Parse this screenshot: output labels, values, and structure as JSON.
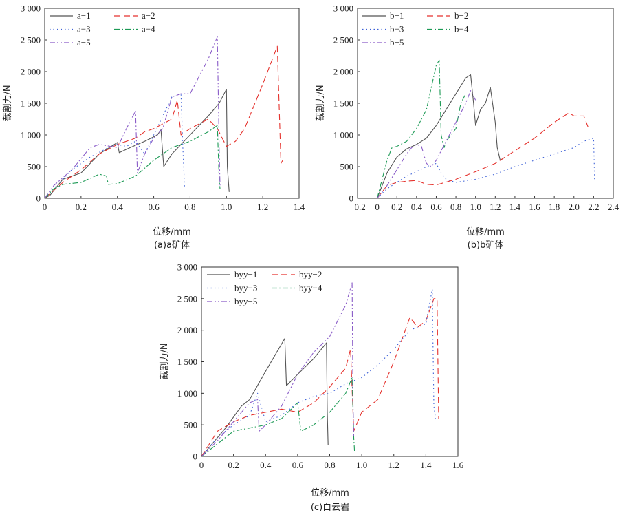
{
  "figure_title": "",
  "colors": {
    "s1": "#555555",
    "s2": "#e5322d",
    "s3": "#3b5fd6",
    "s4": "#1c9a55",
    "s5": "#8a5cc8"
  },
  "chart_data": [
    {
      "type": "line",
      "caption": "(a)a矿体",
      "xlabel": "位移/mm",
      "ylabel": "截割力/N",
      "xlim": [
        0,
        1.4
      ],
      "ylim": [
        0,
        3000
      ],
      "xticks": [
        0,
        0.2,
        0.4,
        0.6,
        0.8,
        1.0,
        1.2,
        1.4
      ],
      "xticklabels": [
        "0",
        "0.2",
        "0.4",
        "0.6",
        "0.8",
        "1.0",
        "1.2",
        "1.4"
      ],
      "yticks": [
        0,
        500,
        1000,
        1500,
        2000,
        2500,
        3000
      ],
      "yticklabels": [
        "0",
        "500",
        "1 000",
        "1 500",
        "2 000",
        "2 500",
        "3 000"
      ],
      "legend_position": "top-left",
      "series": [
        {
          "name": "a−1",
          "style": "s1",
          "x": [
            0,
            0.03,
            0.1,
            0.2,
            0.3,
            0.4,
            0.41,
            0.47,
            0.55,
            0.62,
            0.64,
            0.655,
            0.7,
            0.8,
            0.9,
            0.96,
            1.0,
            1.005,
            1.015
          ],
          "y": [
            0,
            50,
            300,
            400,
            700,
            880,
            720,
            800,
            900,
            1000,
            1080,
            500,
            700,
            1000,
            1300,
            1500,
            1720,
            500,
            100
          ]
        },
        {
          "name": "a−2",
          "style": "s2",
          "x": [
            0,
            0.1,
            0.2,
            0.3,
            0.4,
            0.5,
            0.55,
            0.6,
            0.7,
            0.73,
            0.75,
            0.8,
            0.9,
            0.95,
            1.0,
            1.05,
            1.1,
            1.2,
            1.28,
            1.3,
            1.31
          ],
          "y": [
            0,
            250,
            450,
            700,
            850,
            950,
            1050,
            1100,
            1250,
            1550,
            1000,
            1100,
            1250,
            1100,
            820,
            900,
            1100,
            1800,
            2400,
            550,
            600
          ]
        },
        {
          "name": "a−3",
          "style": "s3",
          "x": [
            0,
            0.05,
            0.15,
            0.25,
            0.35,
            0.4,
            0.45,
            0.5,
            0.55,
            0.6,
            0.7,
            0.75,
            0.76,
            0.77
          ],
          "y": [
            0,
            150,
            450,
            650,
            800,
            850,
            820,
            900,
            700,
            1000,
            1600,
            1650,
            800,
            150
          ]
        },
        {
          "name": "a−4",
          "style": "s4",
          "x": [
            0,
            0.05,
            0.1,
            0.2,
            0.3,
            0.34,
            0.35,
            0.4,
            0.5,
            0.6,
            0.7,
            0.8,
            0.9,
            0.95,
            0.96,
            0.965
          ],
          "y": [
            0,
            150,
            220,
            250,
            380,
            350,
            220,
            230,
            350,
            600,
            800,
            900,
            1050,
            1150,
            300,
            150
          ]
        },
        {
          "name": "a−5",
          "style": "s5",
          "x": [
            0,
            0.05,
            0.15,
            0.25,
            0.3,
            0.4,
            0.45,
            0.5,
            0.51,
            0.55,
            0.6,
            0.65,
            0.7,
            0.75,
            0.8,
            0.9,
            0.95,
            0.96,
            0.965
          ],
          "y": [
            0,
            200,
            450,
            800,
            850,
            800,
            1100,
            1380,
            400,
            700,
            950,
            1100,
            1600,
            1650,
            1650,
            2200,
            2550,
            800,
            200
          ]
        }
      ]
    },
    {
      "type": "line",
      "caption": "(b)b矿体",
      "xlabel": "位移/mm",
      "ylabel": "截割力/N",
      "xlim": [
        -0.2,
        2.4
      ],
      "ylim": [
        0,
        3000
      ],
      "xticks": [
        -0.2,
        0,
        0.2,
        0.4,
        0.6,
        0.8,
        1.0,
        1.2,
        1.4,
        1.6,
        1.8,
        2.0,
        2.2,
        2.4
      ],
      "xticklabels": [
        "−0.2",
        "0",
        "0.2",
        "0.4",
        "0.6",
        "0.8",
        "1.0",
        "1.2",
        "1.4",
        "1.6",
        "1.8",
        "2.0",
        "2.2",
        "2.4"
      ],
      "yticks": [
        0,
        500,
        1000,
        1500,
        2000,
        2500,
        3000
      ],
      "yticklabels": [
        "0",
        "500",
        "1 000",
        "1 500",
        "2 000",
        "2 500",
        "3 000"
      ],
      "legend_position": "top-left",
      "series": [
        {
          "name": "b−1",
          "style": "s1",
          "x": [
            0,
            0.05,
            0.1,
            0.2,
            0.3,
            0.4,
            0.5,
            0.6,
            0.7,
            0.8,
            0.9,
            0.95,
            0.98,
            1.0,
            1.05,
            1.1,
            1.15,
            1.2,
            1.22,
            1.25,
            1.3
          ],
          "y": [
            0,
            200,
            400,
            650,
            780,
            850,
            950,
            1150,
            1400,
            1650,
            1900,
            1950,
            1500,
            1150,
            1400,
            1500,
            1750,
            1200,
            800,
            600,
            650
          ]
        },
        {
          "name": "b−2",
          "style": "s2",
          "x": [
            0,
            0.1,
            0.2,
            0.3,
            0.4,
            0.5,
            0.6,
            0.8,
            1.0,
            1.2,
            1.4,
            1.6,
            1.8,
            1.95,
            2.0,
            2.1,
            2.15
          ],
          "y": [
            0,
            200,
            250,
            270,
            280,
            220,
            210,
            300,
            420,
            550,
            750,
            950,
            1200,
            1350,
            1300,
            1300,
            1100
          ]
        },
        {
          "name": "b−3",
          "style": "s3",
          "x": [
            0,
            0.1,
            0.2,
            0.3,
            0.4,
            0.5,
            0.6,
            0.65,
            0.7,
            0.8,
            1.0,
            1.2,
            1.4,
            1.6,
            1.8,
            2.0,
            2.1,
            2.2,
            2.21
          ],
          "y": [
            0,
            150,
            250,
            350,
            420,
            500,
            550,
            400,
            300,
            250,
            300,
            380,
            500,
            600,
            700,
            800,
            900,
            950,
            300
          ]
        },
        {
          "name": "b−4",
          "style": "s4",
          "x": [
            0,
            0.05,
            0.1,
            0.15,
            0.2,
            0.3,
            0.4,
            0.5,
            0.55,
            0.6,
            0.63,
            0.65,
            0.68,
            0.7,
            0.8,
            0.85,
            0.9
          ],
          "y": [
            0,
            300,
            600,
            800,
            820,
            900,
            1100,
            1400,
            1750,
            2100,
            2180,
            1000,
            800,
            900,
            1100,
            1500,
            1650
          ]
        },
        {
          "name": "b−5",
          "style": "s5",
          "x": [
            0,
            0.1,
            0.2,
            0.3,
            0.35,
            0.4,
            0.45,
            0.5,
            0.55,
            0.6,
            0.7,
            0.8,
            0.9,
            0.95,
            1.0
          ],
          "y": [
            0,
            200,
            450,
            700,
            800,
            850,
            820,
            550,
            500,
            600,
            900,
            1200,
            1500,
            1700,
            1550
          ]
        }
      ]
    },
    {
      "type": "line",
      "caption": "(c)白云岩",
      "xlabel": "位移/mm",
      "ylabel": "截割力/N",
      "xlim": [
        0,
        1.6
      ],
      "ylim": [
        0,
        3000
      ],
      "xticks": [
        0,
        0.2,
        0.4,
        0.6,
        0.8,
        1.0,
        1.2,
        1.4,
        1.6
      ],
      "xticklabels": [
        "0",
        "0.2",
        "0.4",
        "0.6",
        "0.8",
        "1.0",
        "1.2",
        "1.4",
        "1.6"
      ],
      "yticks": [
        0,
        500,
        1000,
        1500,
        2000,
        2500,
        3000
      ],
      "yticklabels": [
        "0",
        "500",
        "1 000",
        "1 500",
        "2 000",
        "2 500",
        "3 000"
      ],
      "legend_position": "top-left",
      "series": [
        {
          "name": "byy−1",
          "style": "s1",
          "x": [
            0,
            0.05,
            0.15,
            0.25,
            0.3,
            0.4,
            0.52,
            0.53,
            0.6,
            0.7,
            0.78,
            0.785,
            0.79
          ],
          "y": [
            0,
            150,
            450,
            800,
            900,
            1350,
            1870,
            1120,
            1300,
            1550,
            1800,
            700,
            180
          ]
        },
        {
          "name": "byy−2",
          "style": "s2",
          "x": [
            0,
            0.1,
            0.2,
            0.3,
            0.4,
            0.5,
            0.6,
            0.7,
            0.8,
            0.9,
            0.93,
            0.95,
            1.0,
            1.1,
            1.2,
            1.3,
            1.35,
            1.4,
            1.45,
            1.47,
            1.48
          ],
          "y": [
            0,
            400,
            550,
            650,
            700,
            750,
            700,
            850,
            1100,
            1400,
            1700,
            400,
            700,
            900,
            1500,
            2200,
            2050,
            2150,
            2500,
            2500,
            600
          ]
        },
        {
          "name": "byy−3",
          "style": "s3",
          "x": [
            0,
            0.1,
            0.2,
            0.3,
            0.35,
            0.4,
            0.5,
            0.6,
            0.7,
            0.8,
            0.9,
            1.0,
            1.1,
            1.2,
            1.3,
            1.4,
            1.44,
            1.45,
            1.46
          ],
          "y": [
            0,
            300,
            500,
            650,
            1000,
            550,
            650,
            850,
            950,
            1000,
            1150,
            1250,
            1450,
            1700,
            2000,
            2100,
            2650,
            800,
            600
          ]
        },
        {
          "name": "byy−4",
          "style": "s4",
          "x": [
            0,
            0.1,
            0.2,
            0.3,
            0.4,
            0.5,
            0.6,
            0.62,
            0.7,
            0.8,
            0.9,
            0.94,
            0.95,
            0.955
          ],
          "y": [
            0,
            200,
            400,
            450,
            500,
            600,
            850,
            400,
            500,
            700,
            1000,
            1250,
            300,
            80
          ]
        },
        {
          "name": "byy−5",
          "style": "s5",
          "x": [
            0,
            0.1,
            0.2,
            0.3,
            0.35,
            0.36,
            0.4,
            0.5,
            0.6,
            0.7,
            0.8,
            0.9,
            0.94,
            0.945,
            0.95
          ],
          "y": [
            0,
            250,
            550,
            850,
            900,
            400,
            500,
            800,
            1300,
            1650,
            1900,
            2400,
            2750,
            900,
            300
          ]
        }
      ]
    }
  ]
}
